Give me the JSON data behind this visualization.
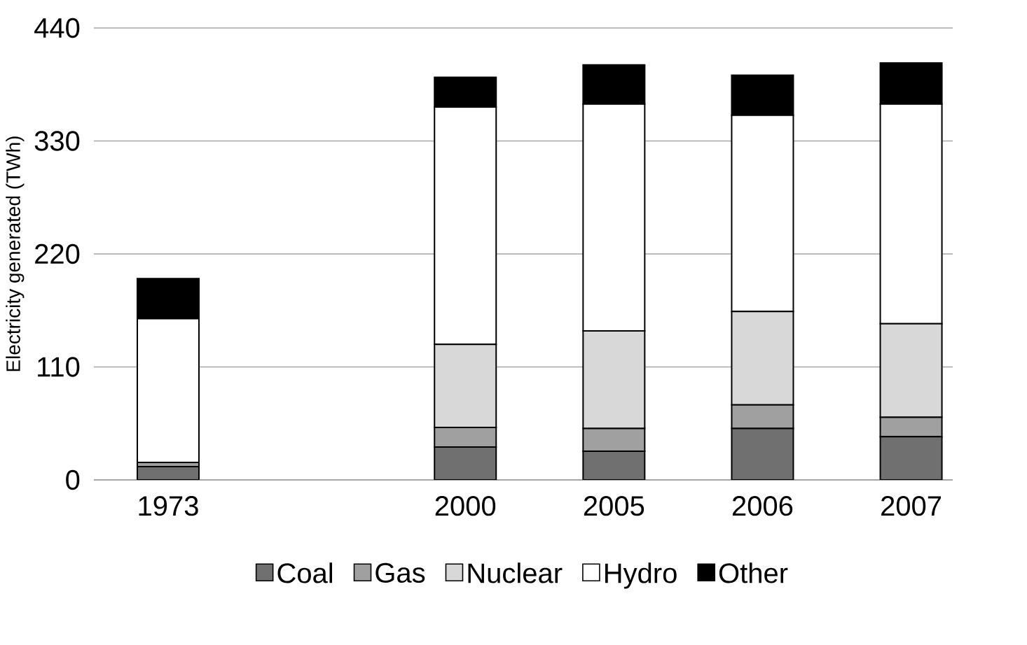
{
  "chart_data": {
    "type": "bar",
    "stacked": true,
    "ylabel": "Electricity generated (TWh)",
    "categories": [
      "1973",
      null,
      "2000",
      "2005",
      "2006",
      "2007"
    ],
    "series": [
      {
        "name": "Coal",
        "color": "#707070",
        "values": [
          13,
          null,
          32,
          28,
          50,
          42
        ]
      },
      {
        "name": "Gas",
        "color": "#a0a0a0",
        "values": [
          4,
          null,
          19,
          22,
          23,
          19
        ]
      },
      {
        "name": "Nuclear",
        "color": "#d8d8d8",
        "values": [
          0,
          null,
          81,
          95,
          91,
          91
        ]
      },
      {
        "name": "Hydro",
        "color": "#ffffff",
        "values": [
          140,
          null,
          231,
          221,
          191,
          214
        ]
      },
      {
        "name": "Other",
        "color": "#000000",
        "values": [
          39,
          null,
          29,
          38,
          39,
          40
        ]
      }
    ],
    "ylim": [
      0,
      440
    ],
    "yticks": [
      0,
      110,
      220,
      330,
      440
    ],
    "grid": "y",
    "legend": "bottom"
  }
}
